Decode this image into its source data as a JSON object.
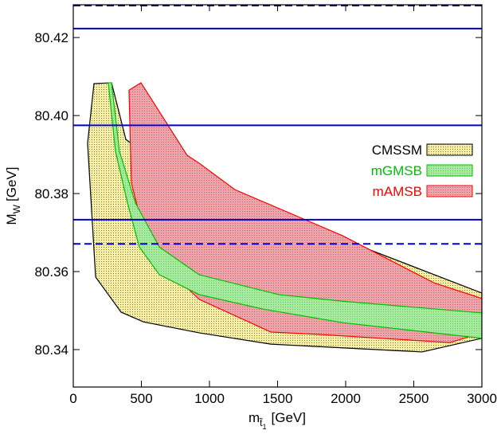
{
  "chart_data": {
    "type": "region",
    "xlabel": {
      "main": "m",
      "sub": "t̃",
      "subsub": "1",
      "unit": "[GeV]"
    },
    "ylabel": {
      "main": "M",
      "sub": "W",
      "unit": "[GeV]"
    },
    "xlim": [
      0,
      3000
    ],
    "xticks": [
      0,
      500,
      1000,
      1500,
      2000,
      2500,
      3000
    ],
    "ylim": [
      80.3304,
      80.4284
    ],
    "yticks": [
      80.34,
      80.36,
      80.38,
      {
        "value": 80.4,
        "label": "80.40"
      },
      80.42
    ],
    "legend": "right",
    "series": [
      {
        "name": "CMSSM",
        "color": "#000000",
        "fill": "#f7efa4",
        "x": [
          152,
          281,
          386,
          544,
          602,
          632,
          982,
          1333,
          1684,
          2094,
          3000,
          3000,
          2561,
          1450,
          924,
          515,
          351,
          164,
          105
        ],
        "y": [
          80.4082,
          80.4084,
          80.3939,
          80.3898,
          80.3873,
          80.3806,
          80.3755,
          80.3729,
          80.3694,
          80.3667,
          80.3545,
          80.3429,
          80.3394,
          80.3414,
          80.3443,
          80.3471,
          80.3496,
          80.3586,
          80.3929
        ]
      },
      {
        "name": "mAMSB",
        "color": "#ff0000",
        "fill": "#e9a7ad",
        "x": [
          409,
          497,
          836,
          924,
          1187,
          1977,
          2649,
          3000,
          3000,
          2766,
          1801,
          1450,
          924,
          702,
          515,
          427
        ],
        "y": [
          80.4065,
          80.4084,
          80.3898,
          80.3878,
          80.381,
          80.3692,
          80.3571,
          80.3531,
          80.3443,
          80.3418,
          80.3439,
          80.3445,
          80.3529,
          80.3602,
          80.3704,
          80.3827
        ]
      },
      {
        "name": "mGMSB",
        "color": "#00c000",
        "fill": "#a8e8a0",
        "x": [
          281,
          339,
          456,
          632,
          924,
          1509,
          1977,
          3000,
          3000,
          1977,
          1392,
          924,
          632,
          485,
          398,
          310,
          257
        ],
        "y": [
          80.4084,
          80.3908,
          80.3776,
          80.3663,
          80.3592,
          80.3541,
          80.3524,
          80.3494,
          80.3429,
          80.3469,
          80.3504,
          80.3541,
          80.3592,
          80.3663,
          80.3776,
          80.3908,
          80.4084
        ]
      }
    ],
    "legend_order": [
      "CMSSM",
      "mGMSB",
      "mAMSB"
    ],
    "hlines_color": "#0000cc",
    "hlines": [
      {
        "value": 80.4282,
        "style": "dashed"
      },
      {
        "value": 80.4223,
        "style": "solid"
      },
      {
        "value": 80.3975,
        "style": "solid"
      },
      {
        "value": 80.3733,
        "style": "solid"
      },
      {
        "value": 80.3671,
        "style": "dashed"
      }
    ]
  }
}
